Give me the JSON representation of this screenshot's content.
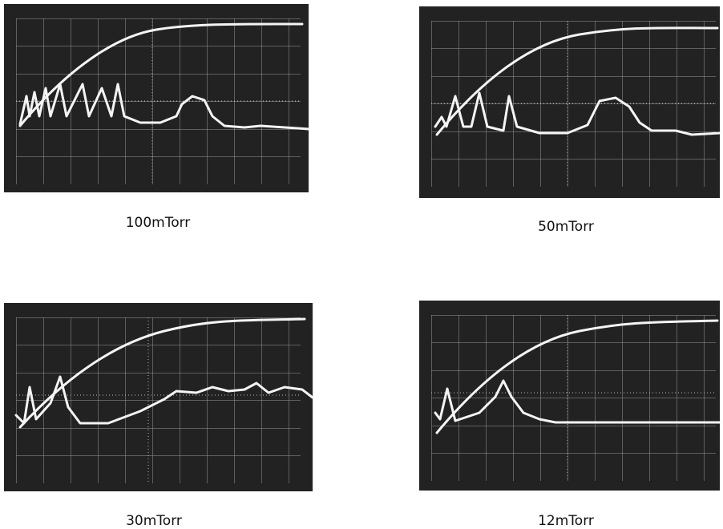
{
  "panels": [
    {
      "label": "100mTorr"
    },
    {
      "label": "50mTorr"
    },
    {
      "label": "30mTorr"
    },
    {
      "label": "12mTorr"
    }
  ]
}
